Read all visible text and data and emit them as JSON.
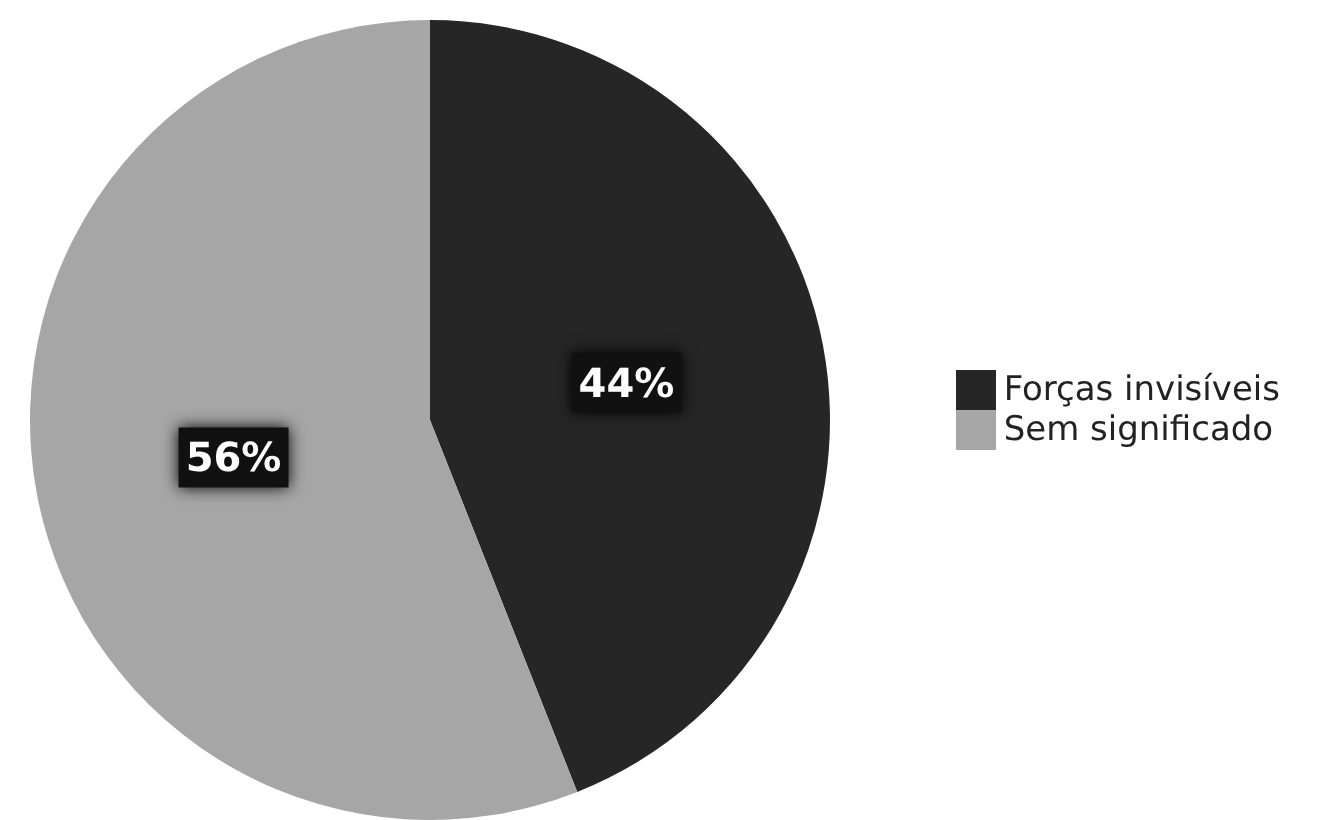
{
  "chart_data": {
    "type": "pie",
    "categories": [
      "Forças invisíveis",
      "Sem significado"
    ],
    "values": [
      44,
      56
    ],
    "colors": [
      "#262626",
      "#a6a6a6"
    ],
    "value_labels": [
      "44%",
      "56%"
    ],
    "legend": "right"
  }
}
